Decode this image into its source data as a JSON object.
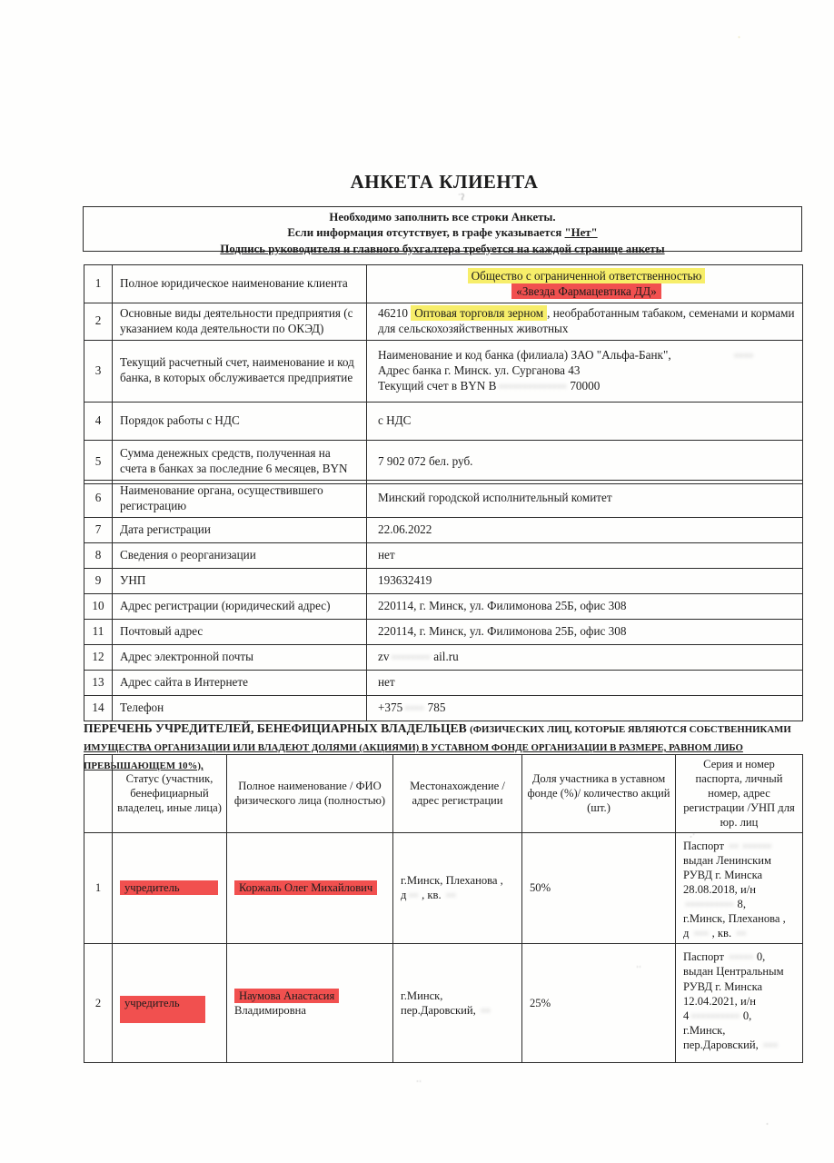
{
  "colors": {
    "hl_yellow": "#f7ee6a",
    "hl_red": "#f1504f",
    "ink": "#1c1c1c",
    "border": "#2b2b2b",
    "paper": "#fefefd"
  },
  "header": {
    "title": "АНКЕТА КЛИЕНТА",
    "notice_lines": [
      [
        {
          "t": "Необходимо заполнить все строки Анкеты."
        }
      ],
      [
        {
          "t": "Если информация отсутствует, в графе указывается "
        },
        {
          "t": "\"Нет\"",
          "c": "u"
        }
      ],
      [
        {
          "t": "Подпись руководителя и главного бухгалтера требуется на каждой странице анкеты",
          "c": "u"
        }
      ]
    ]
  },
  "table1": {
    "rows": [
      {
        "num": "1",
        "label": "Полное юридическое наименование клиента",
        "value_lines": [
          [
            {
              "t": "Общество с ограниченной ответственностью",
              "c": "hl-yellow"
            }
          ],
          [
            {
              "t": "«Звезда Фармацевтика ДД»",
              "c": "hl-red"
            }
          ]
        ]
      },
      {
        "num": "2",
        "label": "Основные виды деятельности предприятия (с указанием кода деятельности по ОКЭД)",
        "value_lines": [
          [
            {
              "t": "46210 "
            },
            {
              "t": "Оптовая торговля зерном",
              "c": "hl-yellow"
            },
            {
              "t": ", необработанным табаком, семенами и кормами для сельскохозяйственных животных"
            }
          ]
        ]
      },
      {
        "num": "3",
        "label": "Текущий расчетный счет, наименование и код банка, в которых обслуживается предприятие",
        "value_lines": [
          [
            {
              "t": "Наименование и код банка (филиала) ЗАО \"Альфа-Банк\","
            },
            {
              "t": "••••",
              "c": "blur gap-r"
            }
          ],
          [
            {
              "t": "Адрес банка  г. Минск. ул. Сурганова 43"
            }
          ],
          [
            {
              "t": "Текущий счет в BYN B"
            },
            {
              "t": "••••••••••••••",
              "c": "blur"
            },
            {
              "t": "70000"
            }
          ]
        ]
      },
      {
        "num": "4",
        "label": "Порядок работы с НДС",
        "value_lines": [
          [
            {
              "t": "с НДС"
            }
          ]
        ]
      },
      {
        "num": "5",
        "label": "Сумма денежных средств, полученная на счета в банках за последние 6 месяцев, BYN",
        "value_lines": [
          [
            {
              "t": "7 902 072 бел. руб."
            }
          ]
        ]
      }
    ]
  },
  "table2": {
    "rows": [
      {
        "num": "6",
        "label": "Наименование органа, осуществившего регистрацию",
        "value_lines": [
          [
            {
              "t": "Минский городской исполнительный комитет"
            }
          ]
        ]
      },
      {
        "num": "7",
        "label": "Дата регистрации",
        "value_lines": [
          [
            {
              "t": "22.06.2022"
            }
          ]
        ]
      },
      {
        "num": "8",
        "label": "Сведения о реорганизации",
        "value_lines": [
          [
            {
              "t": "нет"
            }
          ]
        ]
      },
      {
        "num": "9",
        "label": "УНП",
        "value_lines": [
          [
            {
              "t": "193632419"
            }
          ]
        ]
      },
      {
        "num": "10",
        "label": "Адрес регистрации (юридический адрес)",
        "value_lines": [
          [
            {
              "t": "220114, г. Минск, ул. Филимонова 25Б, офис 308"
            }
          ]
        ]
      },
      {
        "num": "11",
        "label": "Почтовый адрес",
        "value_lines": [
          [
            {
              "t": "220114, г. Минск, ул. Филимонова 25Б, офис 308"
            }
          ]
        ]
      },
      {
        "num": "12",
        "label": "Адрес электронной почты",
        "value_lines": [
          [
            {
              "t": "zv"
            },
            {
              "t": "••••••••",
              "c": "blur"
            },
            {
              "t": "ail.ru"
            }
          ]
        ]
      },
      {
        "num": "13",
        "label": "Адрес сайта в Интернете",
        "value_lines": [
          [
            {
              "t": "нет"
            }
          ]
        ]
      },
      {
        "num": "14",
        "label": "Телефон",
        "value_lines": [
          [
            {
              "t": "+375"
            },
            {
              "t": "••••",
              "c": "blur"
            },
            {
              "t": "785"
            }
          ]
        ]
      }
    ]
  },
  "founders": {
    "heading_lines": [
      [
        {
          "t": "ПЕРЕЧЕНЬ УЧРЕДИТЕЛЕЙ, БЕНЕФИЦИАРНЫХ ВЛАДЕЛЬЦЕВ ",
          "c": "h-main"
        },
        {
          "t": "(ФИЗИЧЕСКИХ ЛИЦ, КОТОРЫЕ ЯВЛЯЮТСЯ СОБСТВЕННИКАМИ",
          "c": "h-small"
        }
      ],
      [
        {
          "t": "ИМУЩЕСТВА ОРГАНИЗАЦИИ ИЛИ ВЛАДЕЮТ ДОЛЯМИ (АКЦИЯМИ) В УСТАВНОМ ФОНДЕ ОРГАНИЗАЦИИ В РАЗМЕРЕ, РАВНОМ ЛИБО ПРЕВЫШАЮЩЕМ 10%),",
          "c": "h-small u"
        }
      ]
    ],
    "columns": [
      "Статус (участник, бенефициарный владелец, иные лица)",
      "Полное наименование / ФИО физического лица (полностью)",
      "Местонахождение / адрес регистрации",
      "Доля участника в уставном фонде (%)/ количество акций (шт.)",
      "Серия и номер паспорта, личный номер, адрес регистрации /УНП для юр.  лиц"
    ],
    "rows": [
      {
        "num": "1",
        "status": [
          [
            {
              "t": "учредитель",
              "c": "hl-red wide"
            }
          ]
        ],
        "name_lines": [
          [
            {
              "t": "Коржаль Олег Михайлович",
              "c": "hl-red"
            }
          ]
        ],
        "location_lines": [
          [
            {
              "t": "г.Минск, Плеханова ,"
            }
          ],
          [
            {
              "t": "д"
            },
            {
              "t": "••",
              "c": "blur"
            },
            {
              "t": ", кв. "
            },
            {
              "t": "••",
              "c": "blur"
            }
          ]
        ],
        "share": "50%",
        "passport_lines": [
          [
            {
              "t": "Паспорт "
            },
            {
              "t": "•• ••••••",
              "c": "blur"
            }
          ],
          [
            {
              "t": "выдан Ленинским"
            }
          ],
          [
            {
              "t": "РУВД г. Минска"
            }
          ],
          [
            {
              "t": "28.08.2018, и/н"
            }
          ],
          [
            {
              "t": "••••••••••",
              "c": "blur"
            },
            {
              "t": "8,"
            }
          ],
          [
            {
              "t": "г.Минск, Плеханова ,"
            }
          ],
          [
            {
              "t": "д "
            },
            {
              "t": "•••",
              "c": "blur"
            },
            {
              "t": ", кв. "
            },
            {
              "t": "••",
              "c": "blur"
            }
          ]
        ]
      },
      {
        "num": "2",
        "status": [
          [
            {
              "t": "учредитель",
              "c": "hl-red drip"
            }
          ]
        ],
        "name_lines": [
          [
            {
              "t": "Наумова Анастасия",
              "c": "hl-red"
            }
          ],
          [
            {
              "t": "Владимировна"
            }
          ]
        ],
        "location_lines": [
          [
            {
              "t": "г.Минск,"
            }
          ],
          [
            {
              "t": "пер.Даровский, "
            },
            {
              "t": "••",
              "c": "blur"
            }
          ]
        ],
        "share": "25%",
        "passport_lines": [
          [
            {
              "t": "Паспорт "
            },
            {
              "t": "•••••",
              "c": "blur"
            },
            {
              "t": "0,"
            }
          ],
          [
            {
              "t": "выдан Центральным"
            }
          ],
          [
            {
              "t": "РУВД г. Минска"
            }
          ],
          [
            {
              "t": "12.04.2021, и/н"
            }
          ],
          [
            {
              "t": "4"
            },
            {
              "t": "••••••••••",
              "c": "blur"
            },
            {
              "t": "0,"
            }
          ],
          [
            {
              "t": "г.Минск,"
            }
          ],
          [
            {
              "t": "пер.Даровский, "
            },
            {
              "t": "•••",
              "c": "blur"
            }
          ]
        ]
      }
    ]
  }
}
